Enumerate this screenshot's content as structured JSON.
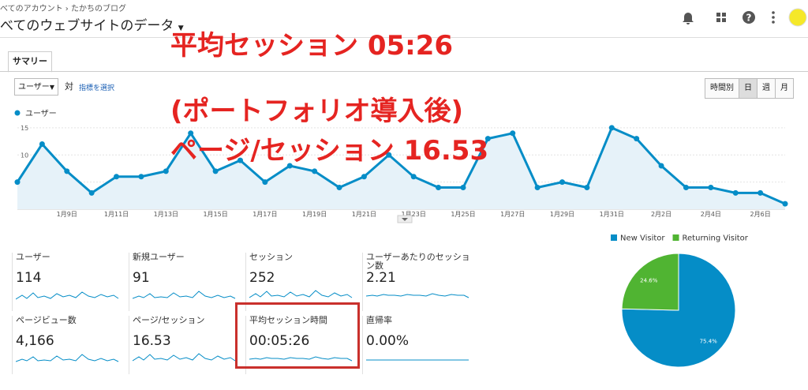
{
  "header": {
    "breadcrumb": "べてのアカウント › たかちのブログ",
    "title": "べてのウェブサイトのデータ"
  },
  "annotations": [
    "平均セッション 05:26",
    "(ポートフォリオ導入後)",
    "ページ/セッション 16.53"
  ],
  "tab": "サマリー",
  "controls": {
    "metric": "ユーザー",
    "versus": "対",
    "select_metric": "指標を選択",
    "periods": [
      "時間別",
      "日",
      "週",
      "月"
    ]
  },
  "chart_data": [
    {
      "type": "line",
      "categories": [
        null,
        null,
        "1月9日",
        null,
        "1月11日",
        null,
        "1月13日",
        null,
        "1月15日",
        null,
        "1月17日",
        null,
        "1月19日",
        null,
        "1月21日",
        null,
        "1月23日",
        null,
        "1月25日",
        null,
        "1月27日",
        null,
        "1月29日",
        null,
        "1月31日",
        null,
        "2月2日",
        null,
        "2月4日",
        null,
        "2月6日",
        null
      ],
      "series": [
        {
          "name": "ユーザー",
          "color": "#058dc7",
          "values": [
            5,
            12,
            7,
            3,
            6,
            6,
            7,
            14,
            7,
            9,
            5,
            8,
            7,
            4,
            6,
            10,
            6,
            4,
            4,
            13,
            14,
            4,
            5,
            4,
            15,
            13,
            8,
            4,
            4,
            3,
            3,
            1
          ]
        }
      ],
      "ylim": [
        0,
        16
      ],
      "yticks": [
        5,
        10,
        15
      ],
      "grid": true
    },
    {
      "type": "pie",
      "categories": [
        "New Visitor",
        "Returning Visitor"
      ],
      "values": [
        75.4,
        24.6
      ],
      "value_labels": [
        "75.4%",
        "24.6%"
      ],
      "colors": [
        "#058dc7",
        "#50b432"
      ]
    }
  ],
  "metrics": [
    {
      "label": "ユーザー",
      "value": "114"
    },
    {
      "label": "新規ユーザー",
      "value": "91"
    },
    {
      "label": "セッション",
      "value": "252"
    },
    {
      "label": "ユーザーあたりのセッション数",
      "value": "2.21"
    },
    {
      "label": "ページビュー数",
      "value": "4,166"
    },
    {
      "label": "ページ/セッション",
      "value": "16.53"
    },
    {
      "label": "平均セッション時間",
      "value": "00:05:26"
    },
    {
      "label": "直帰率",
      "value": "0.00%"
    }
  ]
}
